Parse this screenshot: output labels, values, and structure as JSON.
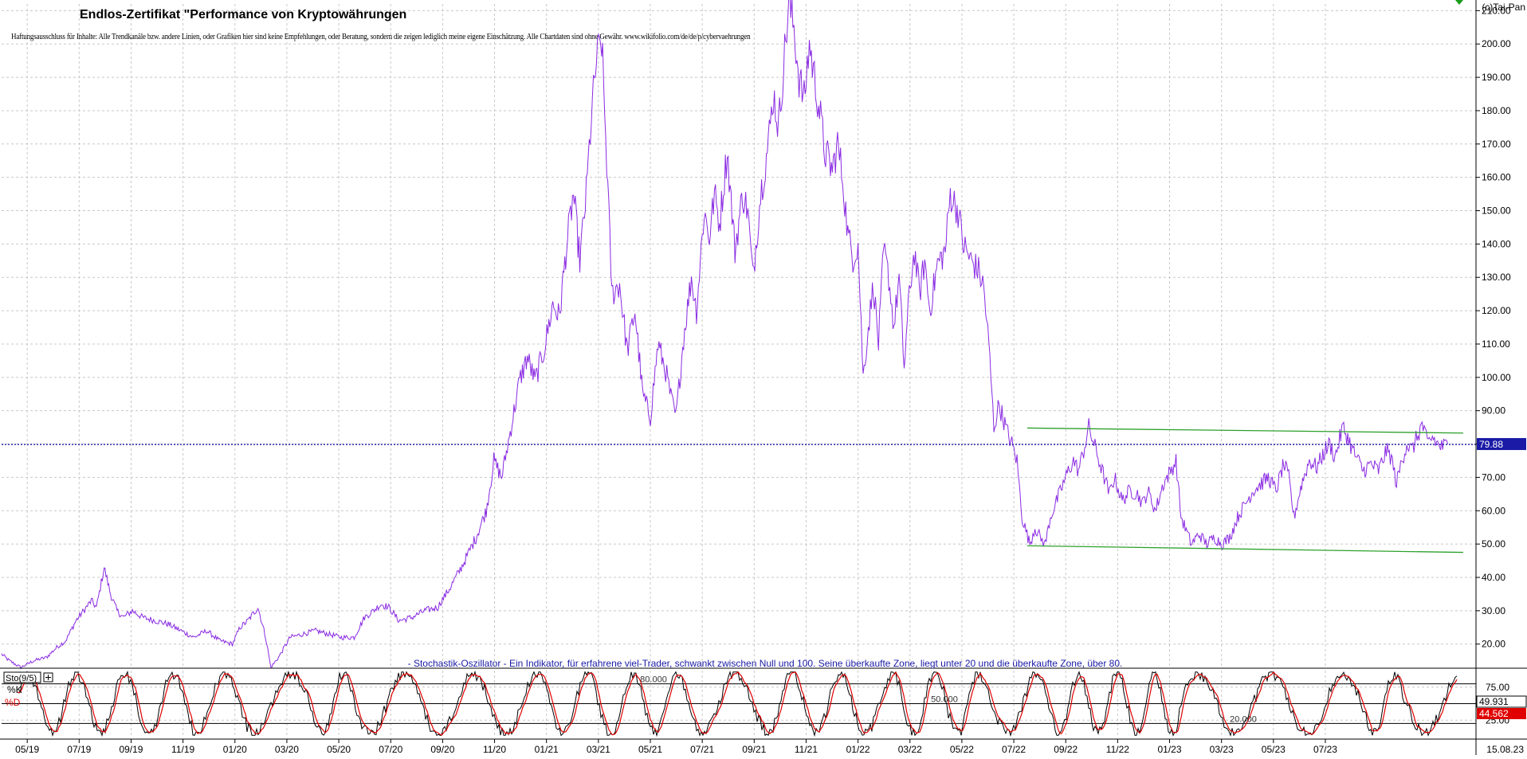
{
  "header": {
    "title": "Endlos-Zertifikat \"Performance von Kryptowährungen",
    "disclaimer": "Haftungsausschluss für Inhalte: Alle Trendkanäle bzw. andere Linien, oder Grafiken hier sind keine Empfehlungen, oder Beratung, sondern die zeigen lediglich meine eigene Einschätzung. Alle Chartdaten sind ohne Gewähr.  www.wikifolio.com/de/de/p/cybervaehrungen",
    "copyright": "(c)Tai-Pan"
  },
  "colors": {
    "price_line": "#8a2be2",
    "trend_lines": "#2ca02c",
    "last_price_line": "#1a1aa6",
    "last_price_label_bg": "#1a1aa6",
    "k_line": "#000000",
    "d_line": "#e00000",
    "grid": "#c8c8c8"
  },
  "chart_data": [
    {
      "type": "line",
      "name": "price-chart",
      "ylim": [
        13,
        212
      ],
      "y_ticks": [
        "20.00",
        "30.00",
        "40.00",
        "50.00",
        "60.00",
        "70.00",
        "80.00",
        "90.00",
        "100.00",
        "110.00",
        "120.00",
        "130.00",
        "140.00",
        "150.00",
        "160.00",
        "170.00",
        "180.00",
        "190.00",
        "200.00",
        "210.00"
      ],
      "x_tick_labels": [
        "05/19",
        "07/19",
        "09/19",
        "11/19",
        "01/20",
        "03/20",
        "05/20",
        "07/20",
        "09/20",
        "11/20",
        "01/21",
        "03/21",
        "05/21",
        "07/21",
        "09/21",
        "11/21",
        "01/22",
        "03/22",
        "05/22",
        "07/22",
        "09/22",
        "11/22",
        "01/23",
        "03/23",
        "05/23",
        "07/23"
      ],
      "date_start": "2019-03",
      "date_end": "2023-08-15",
      "last_value": 79.88,
      "last_value_label": "79.88",
      "series": [
        {
          "values": [
            [
              0,
              17
            ],
            [
              0.6,
              15
            ],
            [
              1.5,
              13
            ],
            [
              2.5,
              15
            ],
            [
              3.5,
              16
            ],
            [
              4.3,
              19
            ],
            [
              5,
              21
            ],
            [
              5.8,
              27
            ],
            [
              6.4,
              30
            ],
            [
              7.0,
              33
            ],
            [
              7.4,
              31
            ],
            [
              8,
              43
            ],
            [
              8.5,
              35
            ],
            [
              9.0,
              30
            ],
            [
              9.5,
              28
            ],
            [
              10.2,
              30
            ],
            [
              11,
              28
            ],
            [
              12,
              27
            ],
            [
              13,
              26
            ],
            [
              14,
              24
            ],
            [
              15,
              22
            ],
            [
              16,
              24
            ],
            [
              17,
              21
            ],
            [
              18,
              20
            ],
            [
              18.6,
              25
            ],
            [
              19.2,
              27
            ],
            [
              20,
              31
            ],
            [
              20.6,
              22
            ],
            [
              21.0,
              13
            ],
            [
              21.6,
              16
            ],
            [
              22.5,
              22
            ],
            [
              23.5,
              23
            ],
            [
              24.5,
              24
            ],
            [
              25.5,
              23
            ],
            [
              26.5,
              22
            ],
            [
              27.5,
              22
            ],
            [
              28.3,
              28
            ],
            [
              29,
              30
            ],
            [
              29.6,
              32
            ],
            [
              30.2,
              31
            ],
            [
              31,
              27
            ],
            [
              32,
              28
            ],
            [
              33,
              30
            ],
            [
              34,
              31
            ],
            [
              35,
              37
            ],
            [
              36,
              44
            ],
            [
              37,
              52
            ],
            [
              37.8,
              60
            ],
            [
              38.4,
              75
            ],
            [
              39,
              70
            ],
            [
              39.6,
              82
            ],
            [
              40.4,
              99
            ],
            [
              41,
              106
            ],
            [
              41.6,
              99
            ],
            [
              42.3,
              108
            ],
            [
              43,
              122
            ],
            [
              43.5,
              118
            ],
            [
              44,
              137
            ],
            [
              44.6,
              155
            ],
            [
              45.1,
              135
            ],
            [
              45.6,
              155
            ],
            [
              46.0,
              178
            ],
            [
              46.4,
              195
            ],
            [
              46.8,
              201
            ],
            [
              47.2,
              165
            ],
            [
              47.6,
              125
            ],
            [
              48.2,
              128
            ],
            [
              48.8,
              108
            ],
            [
              49.4,
              120
            ],
            [
              50,
              95
            ],
            [
              50.6,
              88
            ],
            [
              51.2,
              110
            ],
            [
              51.8,
              102
            ],
            [
              52.2,
              94
            ],
            [
              52.6,
              88
            ],
            [
              53.2,
              112
            ],
            [
              53.8,
              130
            ],
            [
              54.2,
              120
            ],
            [
              54.8,
              150
            ],
            [
              55.2,
              142
            ],
            [
              55.6,
              155
            ],
            [
              56.0,
              146
            ],
            [
              56.6,
              168
            ],
            [
              57.2,
              138
            ],
            [
              57.8,
              155
            ],
            [
              58.2,
              150
            ],
            [
              58.6,
              130
            ],
            [
              59.2,
              155
            ],
            [
              59.8,
              170
            ],
            [
              60.2,
              185
            ],
            [
              60.6,
              175
            ],
            [
              61.0,
              194
            ],
            [
              61.4,
              212
            ],
            [
              61.8,
              205
            ],
            [
              62.2,
              190
            ],
            [
              62.6,
              183
            ],
            [
              63.0,
              200
            ],
            [
              63.4,
              190
            ],
            [
              63.8,
              180
            ],
            [
              64.2,
              168
            ],
            [
              64.8,
              162
            ],
            [
              65.2,
              170
            ],
            [
              65.6,
              160
            ],
            [
              66.0,
              143
            ],
            [
              66.4,
              136
            ],
            [
              66.8,
              140
            ],
            [
              67.2,
              100
            ],
            [
              67.6,
              115
            ],
            [
              68.0,
              128
            ],
            [
              68.4,
              110
            ],
            [
              68.8,
              138
            ],
            [
              69.2,
              130
            ],
            [
              69.6,
              115
            ],
            [
              70.0,
              130
            ],
            [
              70.4,
              103
            ],
            [
              70.8,
              125
            ],
            [
              71.2,
              138
            ],
            [
              71.6,
              125
            ],
            [
              72.0,
              135
            ],
            [
              72.4,
              120
            ],
            [
              73.0,
              134
            ],
            [
              73.6,
              138
            ],
            [
              74.0,
              155
            ],
            [
              74.6,
              150
            ],
            [
              75.0,
              140
            ],
            [
              75.6,
              135
            ],
            [
              76.2,
              132
            ],
            [
              76.6,
              127
            ],
            [
              77.0,
              110
            ],
            [
              77.4,
              85
            ],
            [
              77.8,
              92
            ],
            [
              78.4,
              84
            ],
            [
              78.8,
              80
            ],
            [
              79.2,
              75
            ],
            [
              79.6,
              58
            ],
            [
              80.2,
              50
            ],
            [
              80.6,
              55
            ],
            [
              81.0,
              52
            ],
            [
              81.4,
              50
            ],
            [
              81.8,
              58
            ],
            [
              82.2,
              62
            ],
            [
              82.8,
              68
            ],
            [
              83.2,
              72
            ],
            [
              83.6,
              75
            ],
            [
              84.0,
              72
            ],
            [
              84.4,
              78
            ],
            [
              84.8,
              85
            ],
            [
              85.2,
              80
            ],
            [
              85.6,
              75
            ],
            [
              86.0,
              70
            ],
            [
              86.4,
              65
            ],
            [
              86.8,
              70
            ],
            [
              87.4,
              63
            ],
            [
              88.0,
              66
            ],
            [
              88.6,
              65
            ],
            [
              89.0,
              62
            ],
            [
              89.4,
              66
            ],
            [
              90.0,
              60
            ],
            [
              90.6,
              68
            ],
            [
              91.2,
              72
            ],
            [
              91.6,
              75
            ],
            [
              92.0,
              58
            ],
            [
              92.4,
              54
            ],
            [
              92.8,
              50
            ],
            [
              93.4,
              53
            ],
            [
              94.0,
              50
            ],
            [
              94.6,
              52
            ],
            [
              95.2,
              50
            ],
            [
              95.8,
              52
            ],
            [
              96.4,
              58
            ],
            [
              97.0,
              62
            ],
            [
              97.6,
              66
            ],
            [
              98.2,
              68
            ],
            [
              98.8,
              70
            ],
            [
              99.4,
              66
            ],
            [
              100.0,
              74
            ],
            [
              100.4,
              70
            ],
            [
              100.8,
              58
            ],
            [
              101.4,
              68
            ],
            [
              102.0,
              75
            ],
            [
              102.6,
              73
            ],
            [
              103.2,
              78
            ],
            [
              103.6,
              80
            ],
            [
              104.0,
              76
            ],
            [
              104.6,
              85
            ],
            [
              105.0,
              82
            ],
            [
              105.4,
              78
            ],
            [
              105.8,
              75
            ],
            [
              106.2,
              72
            ],
            [
              106.8,
              74
            ],
            [
              107.4,
              72
            ],
            [
              108.0,
              78
            ],
            [
              108.4,
              76
            ],
            [
              108.8,
              68
            ],
            [
              109.2,
              75
            ],
            [
              109.6,
              80
            ],
            [
              110.0,
              78
            ],
            [
              110.4,
              82
            ],
            [
              110.8,
              86
            ],
            [
              111.2,
              80
            ],
            [
              111.6,
              82
            ],
            [
              112.0,
              80
            ],
            [
              112.4,
              79
            ],
            [
              112.8,
              80
            ]
          ]
        }
      ],
      "trend_lines": [
        {
          "from": [
            80.0,
            84.8
          ],
          "to": [
            114.0,
            83.3
          ]
        },
        {
          "from": [
            80.0,
            49.5
          ],
          "to": [
            114.0,
            47.5
          ]
        }
      ]
    },
    {
      "type": "line",
      "name": "stochastic-oscillator",
      "title": "- Stochastik-Oszillator - Ein Indikator, für erfahrene viel-Trader, schwankt zwischen Null und 100. Seine überkaufte Zone, liegt unter 20 und die überkaufte Zone, über 80.",
      "indicator_label": "Sto(9/5)",
      "ylim": [
        0,
        100
      ],
      "y_ticks": [
        "75.00",
        "25.00"
      ],
      "reference_levels": [
        {
          "value": 80,
          "label": "80.000"
        },
        {
          "value": 50,
          "label": "50.000"
        },
        {
          "value": 20,
          "label": "20.000"
        }
      ],
      "series": [
        {
          "name": "%K",
          "last_label": "49.931"
        },
        {
          "name": "%D",
          "last_label": "44.562"
        }
      ]
    }
  ],
  "footer": {
    "date_label": "15.08.23"
  }
}
